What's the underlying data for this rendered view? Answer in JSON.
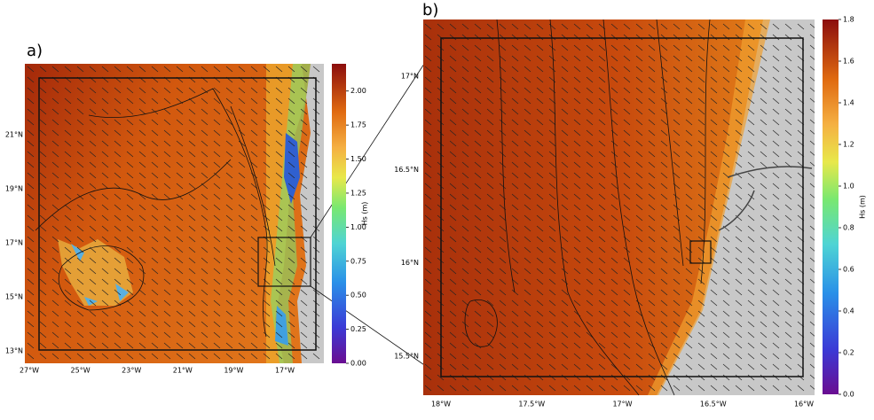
{
  "panels": [
    {
      "label": "a)",
      "lon_labels": [
        "27°W",
        "25°W",
        "23°W",
        "21°W",
        "19°W",
        "17°W"
      ],
      "lat_labels": [
        "21°N",
        "19°N",
        "17°N",
        "15°N",
        "13°N"
      ],
      "colorbar": {
        "label": "Hs (m)",
        "lim": [
          0,
          2.2
        ],
        "ticks": [
          {
            "value": 0,
            "label": "0.00"
          },
          {
            "value": 0.25,
            "label": "0.25"
          },
          {
            "value": 0.5,
            "label": "0.50"
          },
          {
            "value": 0.75,
            "label": "0.75"
          },
          {
            "value": 1,
            "label": "1.00"
          },
          {
            "value": 1.25,
            "label": "1.25"
          },
          {
            "value": 1.5,
            "label": "1.50"
          },
          {
            "value": 1.75,
            "label": "1.75"
          },
          {
            "value": 2,
            "label": "2.00"
          }
        ]
      }
    },
    {
      "label": "b)",
      "lon_labels": [
        "18°W",
        "17.5°W",
        "17°W",
        "16.5°W",
        "16°W"
      ],
      "lat_labels": [
        "17°N",
        "16.5°N",
        "16°N",
        "15.5°N"
      ],
      "colorbar": {
        "label": "Hs (m)",
        "lim": [
          0,
          1.8
        ],
        "ticks": [
          {
            "value": 0,
            "label": "0.0"
          },
          {
            "value": 0.2,
            "label": "0.2"
          },
          {
            "value": 0.4,
            "label": "0.4"
          },
          {
            "value": 0.6,
            "label": "0.6"
          },
          {
            "value": 0.8,
            "label": "0.8"
          },
          {
            "value": 1,
            "label": "1.0"
          },
          {
            "value": 1.2,
            "label": "1.2"
          },
          {
            "value": 1.4,
            "label": "1.4"
          },
          {
            "value": 1.6,
            "label": "1.6"
          },
          {
            "value": 1.8,
            "label": "1.8"
          }
        ]
      }
    }
  ]
}
